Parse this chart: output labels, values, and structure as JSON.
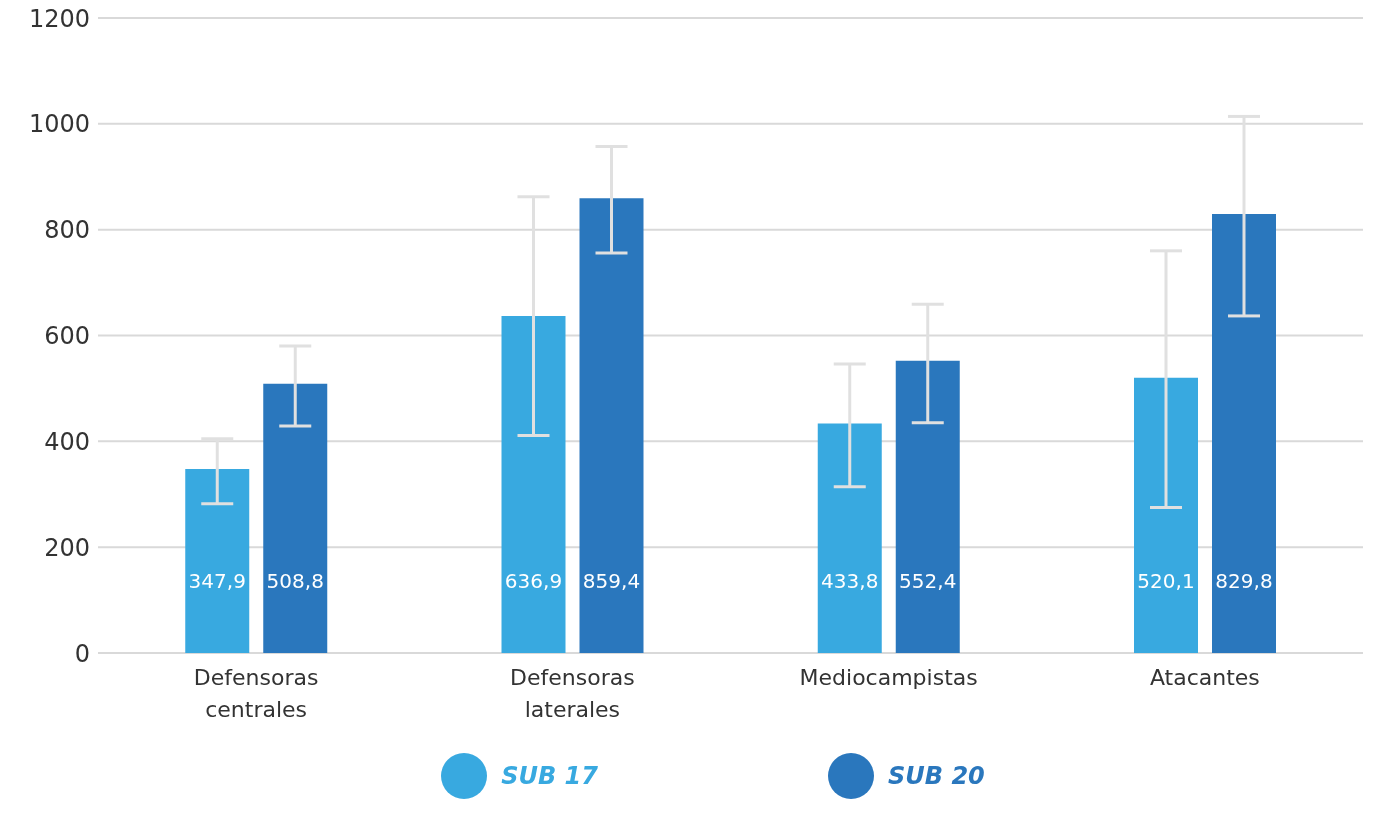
{
  "chart_data": {
    "type": "bar",
    "categories": [
      "Defensoras centrales",
      "Defensoras laterales",
      "Mediocampistas",
      "Atacantes"
    ],
    "series": [
      {
        "name": "SUB 17",
        "color": "#38a9e0",
        "values": [
          347.9,
          636.9,
          433.8,
          520.1
        ],
        "value_labels": [
          "347,9",
          "636,9",
          "433,8",
          "520,1"
        ],
        "errors": [
          [
            282,
            405
          ],
          [
            411,
            862
          ],
          [
            314,
            546
          ],
          [
            275,
            760
          ]
        ]
      },
      {
        "name": "SUB 20",
        "color": "#2a77bd",
        "values": [
          508.8,
          859.4,
          552.4,
          829.8
        ],
        "value_labels": [
          "508,8",
          "859,4",
          "552,4",
          "829,8"
        ],
        "errors": [
          [
            429,
            580
          ],
          [
            756,
            957
          ],
          [
            435,
            659
          ],
          [
            637,
            1014
          ]
        ]
      }
    ],
    "ylim": [
      0,
      1200
    ],
    "yticks": [
      0,
      200,
      400,
      600,
      800,
      1000,
      1200
    ],
    "grid": "y",
    "legend": "bottom"
  }
}
